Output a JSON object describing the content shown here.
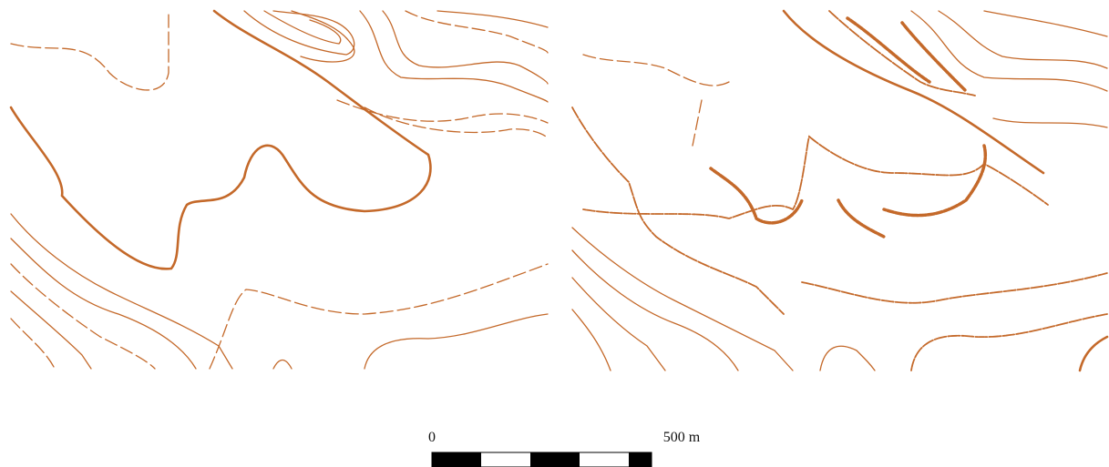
{
  "scale_bar": {
    "labels": [
      "0",
      "500 m"
    ]
  }
}
